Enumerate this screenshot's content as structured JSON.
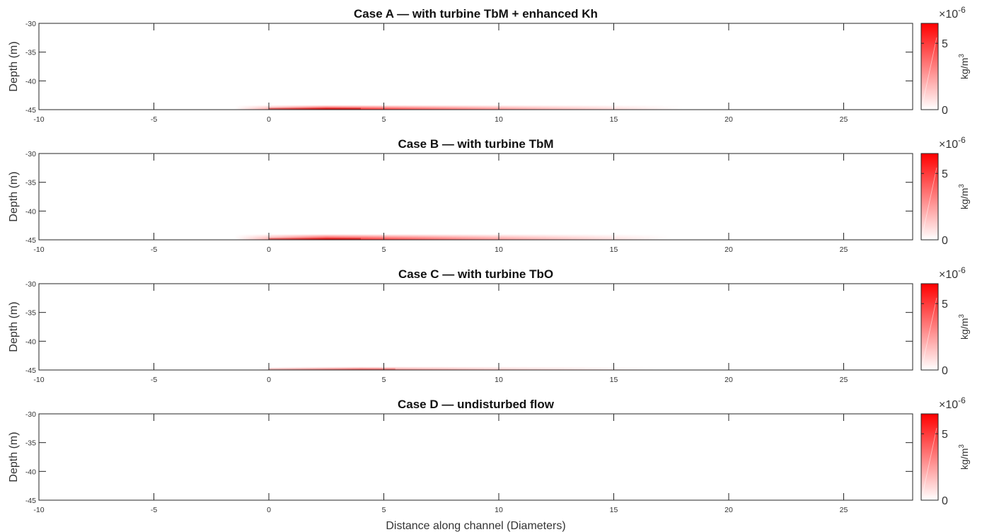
{
  "chart_data": [
    {
      "type": "heatmap",
      "title": "Case A — with turbine TbM + enhanced Kh",
      "xlabel": "",
      "ylabel": "Depth (m)",
      "xlim": [
        -10,
        28
      ],
      "ylim": [
        -45,
        -30
      ],
      "xticks": [
        -10,
        -5,
        0,
        5,
        10,
        15,
        20,
        25
      ],
      "yticks": [
        -30,
        -35,
        -40,
        -45
      ],
      "colorbar": {
        "label": "kg/m",
        "label_superscript": "3",
        "exponent_base": "×10",
        "exponent": "-6",
        "ticks": [
          0,
          5
        ],
        "range": [
          0,
          6.5
        ],
        "colors": [
          "#ffffff",
          "#ff0000"
        ]
      },
      "plume": {
        "x_start": -1.5,
        "x_peak": 2.5,
        "x_end": 18,
        "depth_top": -44.2,
        "peak_value": 6.5
      }
    },
    {
      "type": "heatmap",
      "title": "Case B — with turbine TbM",
      "xlabel": "",
      "ylabel": "Depth (m)",
      "xlim": [
        -10,
        28
      ],
      "ylim": [
        -45,
        -30
      ],
      "xticks": [
        -10,
        -5,
        0,
        5,
        10,
        15,
        20,
        25
      ],
      "yticks": [
        -30,
        -35,
        -40,
        -45
      ],
      "colorbar": {
        "label": "kg/m",
        "label_superscript": "3",
        "exponent_base": "×10",
        "exponent": "-6",
        "ticks": [
          0,
          5
        ],
        "range": [
          0,
          6.5
        ],
        "colors": [
          "#ffffff",
          "#ff0000"
        ]
      },
      "plume": {
        "x_start": -1.5,
        "x_peak": 2.5,
        "x_end": 17.5,
        "depth_top": -44.0,
        "peak_value": 6.3
      }
    },
    {
      "type": "heatmap",
      "title": "Case C — with turbine TbO",
      "xlabel": "",
      "ylabel": "Depth (m)",
      "xlim": [
        -10,
        28
      ],
      "ylim": [
        -45,
        -30
      ],
      "xticks": [
        -10,
        -5,
        0,
        5,
        10,
        15,
        20,
        25
      ],
      "yticks": [
        -30,
        -35,
        -40,
        -45
      ],
      "colorbar": {
        "label": "kg/m",
        "label_superscript": "3",
        "exponent_base": "×10",
        "exponent": "-6",
        "ticks": [
          0,
          5
        ],
        "range": [
          0,
          6.5
        ],
        "colors": [
          "#ffffff",
          "#ff0000"
        ]
      },
      "plume": {
        "x_start": -0.5,
        "x_peak": 4,
        "x_end": 17,
        "depth_top": -44.4,
        "peak_value": 3.5
      }
    },
    {
      "type": "heatmap",
      "title": "Case D — undisturbed flow",
      "xlabel": "Distance along channel (Diameters)",
      "ylabel": "Depth (m)",
      "xlim": [
        -10,
        28
      ],
      "ylim": [
        -45,
        -30
      ],
      "xticks": [
        -10,
        -5,
        0,
        5,
        10,
        15,
        20,
        25
      ],
      "yticks": [
        -30,
        -35,
        -40,
        -45
      ],
      "colorbar": {
        "label": "kg/m",
        "label_superscript": "3",
        "exponent_base": "×10",
        "exponent": "-6",
        "ticks": [
          0,
          5
        ],
        "range": [
          0,
          6.5
        ],
        "colors": [
          "#ffffff",
          "#ff0000"
        ]
      },
      "plume": null
    }
  ]
}
